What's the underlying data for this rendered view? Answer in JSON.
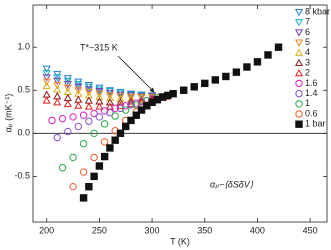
{
  "chart_data": {
    "type": "scatter",
    "xlabel": "T (K)",
    "ylabel": "αₚ (mK⁻¹)",
    "annotations": [
      "T*~315 K",
      "αₚ~⟨δSδV⟩"
    ],
    "xlim": [
      187,
      466
    ],
    "ylim": [
      -1.03,
      1.49
    ],
    "xticks": [
      200,
      250,
      300,
      350,
      400,
      450
    ],
    "yticks": [
      {
        "value": -0.5,
        "label": "-0.5"
      },
      {
        "value": 0,
        "label": "0.0"
      },
      0.5,
      {
        "value": 1,
        "label": "1.0"
      }
    ],
    "legend": "upper right",
    "series": [
      {
        "name": "8 kbar",
        "color": "#2a7fd4",
        "marker": "triangle-down",
        "x": [
          200,
          210,
          220,
          230,
          240,
          250,
          260,
          270,
          280,
          290,
          300,
          310
        ],
        "values": [
          0.75,
          0.69,
          0.64,
          0.6,
          0.56,
          0.53,
          0.5,
          0.48,
          0.46,
          0.45,
          0.44,
          0.43
        ]
      },
      {
        "name": "7",
        "color": "#19b3c8",
        "marker": "triangle-down",
        "x": [
          200,
          210,
          220,
          230,
          240,
          250,
          260,
          270,
          280,
          290,
          300,
          310
        ],
        "values": [
          0.7,
          0.65,
          0.61,
          0.57,
          0.54,
          0.51,
          0.49,
          0.47,
          0.45,
          0.44,
          0.43,
          0.43
        ]
      },
      {
        "name": "6",
        "color": "#7a3fa8",
        "marker": "triangle-down",
        "x": [
          200,
          210,
          220,
          230,
          240,
          250,
          260,
          270,
          280,
          290,
          300,
          310
        ],
        "values": [
          0.65,
          0.61,
          0.57,
          0.54,
          0.51,
          0.49,
          0.47,
          0.45,
          0.44,
          0.43,
          0.43,
          0.43
        ]
      },
      {
        "name": "5",
        "color": "#f08a1c",
        "marker": "triangle-down",
        "x": [
          200,
          210,
          220,
          230,
          240,
          250,
          260,
          270,
          280,
          290,
          300,
          310
        ],
        "values": [
          0.6,
          0.56,
          0.53,
          0.5,
          0.48,
          0.46,
          0.44,
          0.43,
          0.42,
          0.42,
          0.42,
          0.43
        ]
      },
      {
        "name": "4",
        "color": "#d8b21a",
        "marker": "triangle-up",
        "x": [
          200,
          210,
          220,
          230,
          240,
          250,
          260,
          270,
          280,
          290,
          300,
          310
        ],
        "values": [
          0.55,
          0.51,
          0.48,
          0.46,
          0.44,
          0.42,
          0.41,
          0.4,
          0.4,
          0.4,
          0.41,
          0.42
        ]
      },
      {
        "name": "3",
        "color": "#8b1a1a",
        "marker": "triangle-up",
        "x": [
          200,
          210,
          220,
          230,
          240,
          250,
          260,
          270,
          280,
          290,
          300,
          310
        ],
        "values": [
          0.45,
          0.43,
          0.41,
          0.39,
          0.38,
          0.37,
          0.36,
          0.36,
          0.37,
          0.38,
          0.4,
          0.42
        ]
      },
      {
        "name": "2",
        "color": "#e02020",
        "marker": "triangle-up",
        "x": [
          200,
          210,
          220,
          230,
          240,
          250,
          260,
          270,
          280,
          290,
          300,
          310
        ],
        "values": [
          0.38,
          0.36,
          0.34,
          0.32,
          0.31,
          0.31,
          0.31,
          0.32,
          0.34,
          0.36,
          0.39,
          0.42
        ]
      },
      {
        "name": "1.6",
        "color": "#e020c0",
        "marker": "circle",
        "x": [
          205,
          215,
          225,
          235,
          245,
          255,
          265,
          275,
          285,
          295,
          305
        ],
        "values": [
          0.15,
          0.17,
          0.19,
          0.21,
          0.23,
          0.26,
          0.29,
          0.32,
          0.35,
          0.38,
          0.41
        ]
      },
      {
        "name": "1.4",
        "color": "#8a4fc8",
        "marker": "circle",
        "x": [
          210,
          220,
          230,
          240,
          250,
          260,
          270,
          280,
          290,
          300,
          310
        ],
        "values": [
          -0.05,
          0.02,
          0.08,
          0.14,
          0.19,
          0.24,
          0.29,
          0.33,
          0.37,
          0.4,
          0.42
        ]
      },
      {
        "name": "1",
        "color": "#2aa84a",
        "marker": "circle",
        "x": [
          215,
          225,
          235,
          245,
          255,
          265,
          275,
          285,
          295,
          305
        ],
        "values": [
          -0.4,
          -0.28,
          -0.12,
          0,
          0.11,
          0.2,
          0.27,
          0.33,
          0.38,
          0.41
        ]
      },
      {
        "name": "0.6",
        "color": "#f05a28",
        "marker": "circle",
        "x": [
          225,
          235,
          245,
          255,
          265,
          275,
          285,
          295,
          305,
          315
        ],
        "values": [
          -0.62,
          -0.45,
          -0.28,
          -0.1,
          0.03,
          0.15,
          0.25,
          0.33,
          0.39,
          0.43
        ]
      },
      {
        "name": "1 bar",
        "color": "#111111",
        "marker": "square",
        "x": [
          235,
          240,
          245,
          250,
          255,
          260,
          265,
          270,
          275,
          280,
          285,
          290,
          295,
          300,
          305,
          310,
          315,
          320,
          330,
          340,
          350,
          360,
          370,
          380,
          390,
          400,
          410,
          420
        ],
        "values": [
          -0.75,
          -0.62,
          -0.5,
          -0.38,
          -0.27,
          -0.17,
          -0.08,
          0,
          0.08,
          0.15,
          0.21,
          0.27,
          0.32,
          0.36,
          0.39,
          0.42,
          0.44,
          0.46,
          0.5,
          0.54,
          0.58,
          0.62,
          0.66,
          0.71,
          0.77,
          0.83,
          0.91,
          1.0
        ]
      }
    ]
  }
}
